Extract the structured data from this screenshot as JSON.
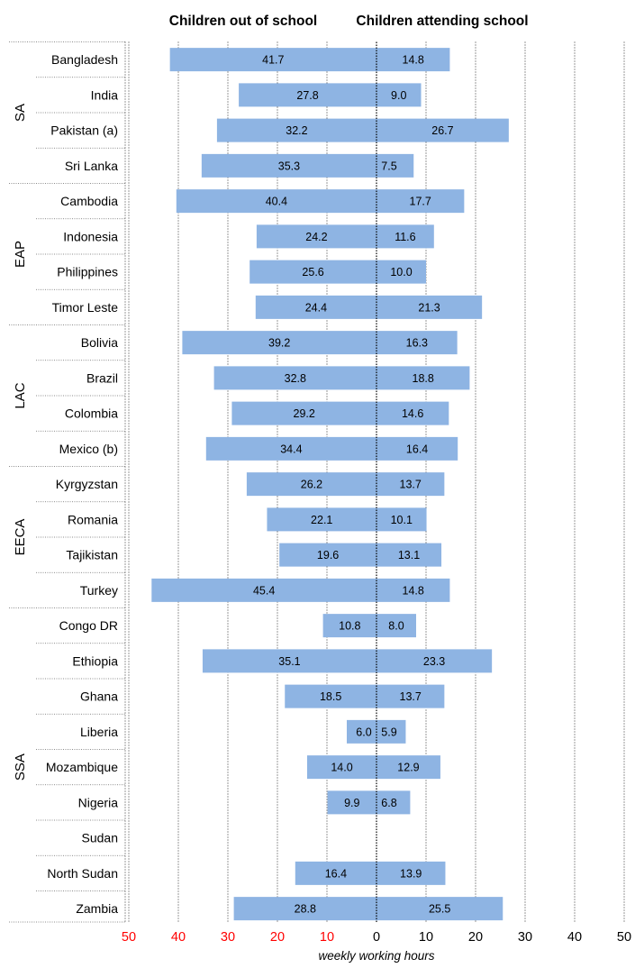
{
  "chart_data": {
    "type": "bar",
    "orientation": "horizontal",
    "headers": {
      "left": "Children out of school",
      "right": "Children attending school"
    },
    "xlabel": "weekly working hours",
    "xlim": [
      -50,
      50
    ],
    "ticks": [
      -50,
      -40,
      -30,
      -20,
      -10,
      0,
      10,
      20,
      30,
      40,
      50
    ],
    "tick_labels": [
      "50",
      "40",
      "30",
      "20",
      "10",
      "0",
      "10",
      "20",
      "30",
      "40",
      "50"
    ],
    "grid": true,
    "colors": {
      "bar": "#8eb4e3",
      "negative_ticks": "#ff0000"
    },
    "groups": [
      {
        "region": "SA",
        "rows": [
          {
            "country": "Bangladesh",
            "out": 41.7,
            "out_label": "41.7",
            "attending": 14.8,
            "attending_label": "14.8"
          },
          {
            "country": "India",
            "out": 27.8,
            "out_label": "27.8",
            "attending": 9.0,
            "attending_label": "9.0"
          },
          {
            "country": "Pakistan (a)",
            "out": 32.2,
            "out_label": "32.2",
            "attending": 26.7,
            "attending_label": "26.7"
          },
          {
            "country": "Sri Lanka",
            "out": 35.3,
            "out_label": "35.3",
            "attending": 7.5,
            "attending_label": "7.5"
          }
        ]
      },
      {
        "region": "EAP",
        "rows": [
          {
            "country": "Cambodia",
            "out": 40.4,
            "out_label": "40.4",
            "attending": 17.7,
            "attending_label": "17.7"
          },
          {
            "country": "Indonesia",
            "out": 24.2,
            "out_label": "24.2",
            "attending": 11.6,
            "attending_label": "11.6"
          },
          {
            "country": "Philippines",
            "out": 25.6,
            "out_label": "25.6",
            "attending": 10.0,
            "attending_label": "10.0"
          },
          {
            "country": "Timor Leste",
            "out": 24.4,
            "out_label": "24.4",
            "attending": 21.3,
            "attending_label": "21.3"
          }
        ]
      },
      {
        "region": "LAC",
        "rows": [
          {
            "country": "Bolivia",
            "out": 39.2,
            "out_label": "39.2",
            "attending": 16.3,
            "attending_label": "16.3"
          },
          {
            "country": "Brazil",
            "out": 32.8,
            "out_label": "32.8",
            "attending": 18.8,
            "attending_label": "18.8"
          },
          {
            "country": "Colombia",
            "out": 29.2,
            "out_label": "29.2",
            "attending": 14.6,
            "attending_label": "14.6"
          },
          {
            "country": "Mexico (b)",
            "out": 34.4,
            "out_label": "34.4",
            "attending": 16.4,
            "attending_label": "16.4"
          }
        ]
      },
      {
        "region": "EECA",
        "rows": [
          {
            "country": "Kyrgyzstan",
            "out": 26.2,
            "out_label": "26.2",
            "attending": 13.7,
            "attending_label": "13.7"
          },
          {
            "country": "Romania",
            "out": 22.1,
            "out_label": "22.1",
            "attending": 10.1,
            "attending_label": "10.1"
          },
          {
            "country": "Tajikistan",
            "out": 19.6,
            "out_label": "19.6",
            "attending": 13.1,
            "attending_label": "13.1"
          },
          {
            "country": "Turkey",
            "out": 45.4,
            "out_label": "45.4",
            "attending": 14.8,
            "attending_label": "14.8"
          }
        ]
      },
      {
        "region": "SSA",
        "rows": [
          {
            "country": "Congo DR",
            "out": 10.8,
            "out_label": "10.8",
            "attending": 8.0,
            "attending_label": "8.0"
          },
          {
            "country": "Ethiopia",
            "out": 35.1,
            "out_label": "35.1",
            "attending": 23.3,
            "attending_label": "23.3"
          },
          {
            "country": "Ghana",
            "out": 18.5,
            "out_label": "18.5",
            "attending": 13.7,
            "attending_label": "13.7"
          },
          {
            "country": "Liberia",
            "out": 6.0,
            "out_label": "6.0",
            "attending": 5.9,
            "attending_label": "5.9"
          },
          {
            "country": "Mozambique",
            "out": 14.0,
            "out_label": "14.0",
            "attending": 12.9,
            "attending_label": "12.9"
          },
          {
            "country": "Nigeria",
            "out": 9.9,
            "out_label": "9.9",
            "attending": 6.8,
            "attending_label": "6.8"
          },
          {
            "country": "Sudan",
            "out": null,
            "out_label": "",
            "attending": null,
            "attending_label": ""
          },
          {
            "country": "North Sudan",
            "out": 16.4,
            "out_label": "16.4",
            "attending": 13.9,
            "attending_label": "13.9"
          },
          {
            "country": "Zambia",
            "out": 28.8,
            "out_label": "28.8",
            "attending": 25.5,
            "attending_label": "25.5"
          }
        ]
      }
    ]
  }
}
